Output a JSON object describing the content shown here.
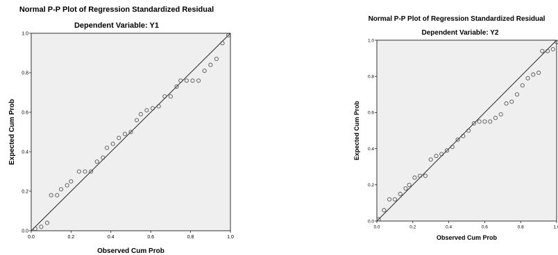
{
  "chart_data": [
    {
      "type": "scatter",
      "title": "Normal P-P Plot of Regression Standardized Residual",
      "subtitle": "Dependent Variable: Y1",
      "xlabel": "Observed Cum Prob",
      "ylabel": "Expected Cum Prob",
      "xlim": [
        0,
        1
      ],
      "ylim": [
        0,
        1
      ],
      "xticks": [
        "0.0",
        "0.2",
        "0.4",
        "0.6",
        "0.8",
        "1.0"
      ],
      "yticks": [
        "0.0",
        "0.2",
        "0.4",
        "0.6",
        "0.8",
        "1.0"
      ],
      "reference_line": [
        [
          0,
          0
        ],
        [
          1,
          1
        ]
      ],
      "background_color": "#efefef",
      "marker_color": "#555555",
      "grid": false,
      "legend": "none",
      "points": [
        [
          0.02,
          0.01
        ],
        [
          0.05,
          0.02
        ],
        [
          0.08,
          0.04
        ],
        [
          0.1,
          0.18
        ],
        [
          0.13,
          0.18
        ],
        [
          0.15,
          0.21
        ],
        [
          0.18,
          0.23
        ],
        [
          0.2,
          0.25
        ],
        [
          0.24,
          0.3
        ],
        [
          0.27,
          0.3
        ],
        [
          0.3,
          0.3
        ],
        [
          0.33,
          0.35
        ],
        [
          0.36,
          0.37
        ],
        [
          0.38,
          0.42
        ],
        [
          0.41,
          0.44
        ],
        [
          0.44,
          0.47
        ],
        [
          0.47,
          0.49
        ],
        [
          0.5,
          0.5
        ],
        [
          0.53,
          0.56
        ],
        [
          0.55,
          0.59
        ],
        [
          0.58,
          0.61
        ],
        [
          0.61,
          0.62
        ],
        [
          0.64,
          0.63
        ],
        [
          0.67,
          0.68
        ],
        [
          0.7,
          0.68
        ],
        [
          0.73,
          0.73
        ],
        [
          0.75,
          0.76
        ],
        [
          0.78,
          0.76
        ],
        [
          0.81,
          0.76
        ],
        [
          0.84,
          0.76
        ],
        [
          0.87,
          0.81
        ],
        [
          0.9,
          0.84
        ],
        [
          0.93,
          0.87
        ],
        [
          0.96,
          0.95
        ],
        [
          0.99,
          0.99
        ]
      ]
    },
    {
      "type": "scatter",
      "title": "Normal P-P Plot of Regression Standardized Residual",
      "subtitle": "Dependent Variable: Y2",
      "xlabel": "Observed Cum Prob",
      "ylabel": "Expected Cum Prob",
      "xlim": [
        0,
        1
      ],
      "ylim": [
        0,
        1
      ],
      "xticks": [
        "0.0",
        "0.2",
        "0.4",
        "0.6",
        "0.8",
        "1.0"
      ],
      "yticks": [
        "0.0",
        "0.2",
        "0.4",
        "0.6",
        "0.8",
        "1.0"
      ],
      "reference_line": [
        [
          0,
          0
        ],
        [
          1,
          1
        ]
      ],
      "background_color": "#efefef",
      "marker_color": "#555555",
      "grid": false,
      "legend": "none",
      "points": [
        [
          0.01,
          0.01
        ],
        [
          0.04,
          0.06
        ],
        [
          0.07,
          0.12
        ],
        [
          0.1,
          0.12
        ],
        [
          0.13,
          0.15
        ],
        [
          0.16,
          0.18
        ],
        [
          0.18,
          0.2
        ],
        [
          0.21,
          0.24
        ],
        [
          0.24,
          0.25
        ],
        [
          0.27,
          0.25
        ],
        [
          0.3,
          0.34
        ],
        [
          0.33,
          0.36
        ],
        [
          0.36,
          0.37
        ],
        [
          0.39,
          0.39
        ],
        [
          0.42,
          0.41
        ],
        [
          0.45,
          0.45
        ],
        [
          0.48,
          0.47
        ],
        [
          0.51,
          0.5
        ],
        [
          0.54,
          0.54
        ],
        [
          0.57,
          0.55
        ],
        [
          0.6,
          0.55
        ],
        [
          0.63,
          0.55
        ],
        [
          0.66,
          0.57
        ],
        [
          0.69,
          0.59
        ],
        [
          0.72,
          0.65
        ],
        [
          0.75,
          0.66
        ],
        [
          0.78,
          0.7
        ],
        [
          0.81,
          0.75
        ],
        [
          0.84,
          0.79
        ],
        [
          0.87,
          0.81
        ],
        [
          0.9,
          0.82
        ],
        [
          0.92,
          0.94
        ],
        [
          0.95,
          0.94
        ],
        [
          0.98,
          0.95
        ],
        [
          1.0,
          0.99
        ]
      ]
    }
  ]
}
